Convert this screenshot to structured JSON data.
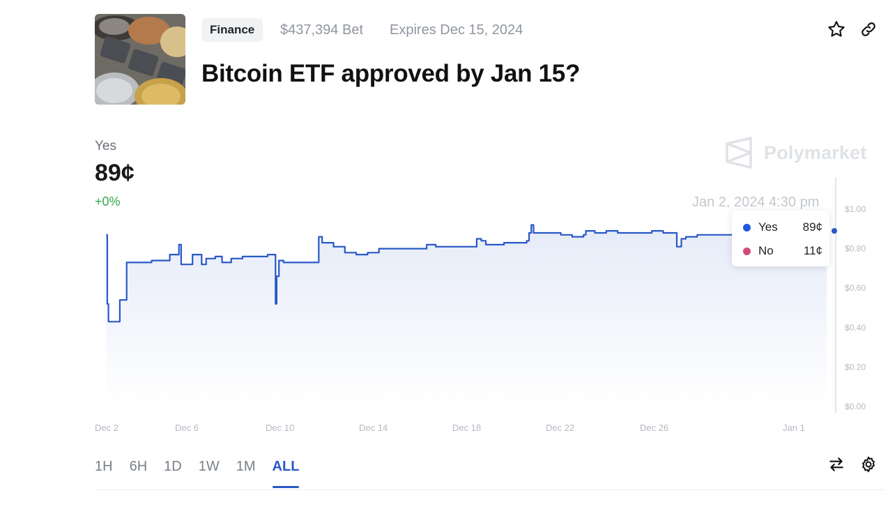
{
  "market": {
    "category": "Finance",
    "volume": "$437,394 Bet",
    "expires": "Expires Dec 15, 2024",
    "title": "Bitcoin ETF approved by Jan 15?"
  },
  "header_icons": [
    "star-icon",
    "link-icon"
  ],
  "outcome": {
    "label": "Yes",
    "price": "89¢",
    "change": "+0%"
  },
  "watermark": "Polymarket",
  "hover": {
    "date": "Jan 2, 2024 4:30 pm",
    "rows": [
      {
        "label": "Yes",
        "value": "89¢",
        "color": "#2356e0"
      },
      {
        "label": "No",
        "value": "11¢",
        "color": "#d24a7a"
      }
    ]
  },
  "time_ranges": [
    "1H",
    "6H",
    "1D",
    "1W",
    "1M",
    "ALL"
  ],
  "active_range": "ALL",
  "bottom_icons": [
    "swap-icon",
    "gear-icon"
  ],
  "colors": {
    "line": "#2858c6",
    "positive": "#2fa84f",
    "accent": "#2858c6"
  },
  "chart_data": {
    "type": "line",
    "x_tick_labels": [
      "Dec 2",
      "Dec 6",
      "Dec 10",
      "Dec 14",
      "Dec 18",
      "Dec 22",
      "Dec 26",
      "Jan 1"
    ],
    "y_tick_labels": [
      "$1.00",
      "$0.80",
      "$0.60",
      "$0.40",
      "$0.20",
      "$0.00"
    ],
    "ylim": [
      0,
      1
    ],
    "series": [
      {
        "values": [
          [
            1.5,
            0.87
          ],
          [
            1.55,
            0.52
          ],
          [
            1.6,
            0.43
          ],
          [
            1.9,
            0.43
          ],
          [
            2.0,
            0.43
          ],
          [
            2.1,
            0.54
          ],
          [
            2.3,
            0.54
          ],
          [
            2.4,
            0.73
          ],
          [
            3.0,
            0.73
          ],
          [
            3.5,
            0.74
          ],
          [
            4.0,
            0.74
          ],
          [
            4.3,
            0.77
          ],
          [
            4.6,
            0.77
          ],
          [
            4.7,
            0.82
          ],
          [
            4.8,
            0.72
          ],
          [
            5.0,
            0.72
          ],
          [
            5.3,
            0.77
          ],
          [
            5.6,
            0.77
          ],
          [
            5.7,
            0.72
          ],
          [
            5.9,
            0.75
          ],
          [
            6.3,
            0.76
          ],
          [
            6.6,
            0.73
          ],
          [
            7.0,
            0.75
          ],
          [
            7.5,
            0.76
          ],
          [
            8.0,
            0.76
          ],
          [
            8.3,
            0.76
          ],
          [
            8.6,
            0.77
          ],
          [
            8.9,
            0.77
          ],
          [
            8.95,
            0.52
          ],
          [
            9.0,
            0.66
          ],
          [
            9.1,
            0.74
          ],
          [
            9.3,
            0.73
          ],
          [
            10.0,
            0.73
          ],
          [
            10.8,
            0.73
          ],
          [
            10.85,
            0.86
          ],
          [
            11.0,
            0.83
          ],
          [
            11.5,
            0.81
          ],
          [
            12.0,
            0.78
          ],
          [
            12.5,
            0.77
          ],
          [
            13.0,
            0.78
          ],
          [
            13.5,
            0.8
          ],
          [
            14.0,
            0.8
          ],
          [
            15.0,
            0.8
          ],
          [
            15.5,
            0.8
          ],
          [
            15.6,
            0.82
          ],
          [
            16.0,
            0.81
          ],
          [
            17.0,
            0.81
          ],
          [
            17.6,
            0.81
          ],
          [
            17.8,
            0.85
          ],
          [
            18.0,
            0.84
          ],
          [
            18.2,
            0.82
          ],
          [
            19.0,
            0.83
          ],
          [
            20.0,
            0.84
          ],
          [
            20.1,
            0.88
          ],
          [
            20.2,
            0.92
          ],
          [
            20.3,
            0.88
          ],
          [
            21.0,
            0.88
          ],
          [
            21.5,
            0.87
          ],
          [
            22.0,
            0.86
          ],
          [
            22.5,
            0.87
          ],
          [
            22.6,
            0.89
          ],
          [
            23.0,
            0.88
          ],
          [
            23.5,
            0.89
          ],
          [
            24.0,
            0.88
          ],
          [
            24.5,
            0.88
          ],
          [
            25.0,
            0.88
          ],
          [
            25.5,
            0.89
          ],
          [
            26.0,
            0.88
          ],
          [
            26.5,
            0.88
          ],
          [
            26.6,
            0.81
          ],
          [
            26.8,
            0.85
          ],
          [
            27.0,
            0.86
          ],
          [
            27.5,
            0.87
          ],
          [
            28.0,
            0.87
          ],
          [
            29.0,
            0.87
          ],
          [
            30.0,
            0.86
          ],
          [
            31.0,
            0.87
          ],
          [
            32.0,
            0.87
          ],
          [
            32.5,
            0.87
          ],
          [
            33.2,
            0.89
          ]
        ]
      }
    ]
  }
}
